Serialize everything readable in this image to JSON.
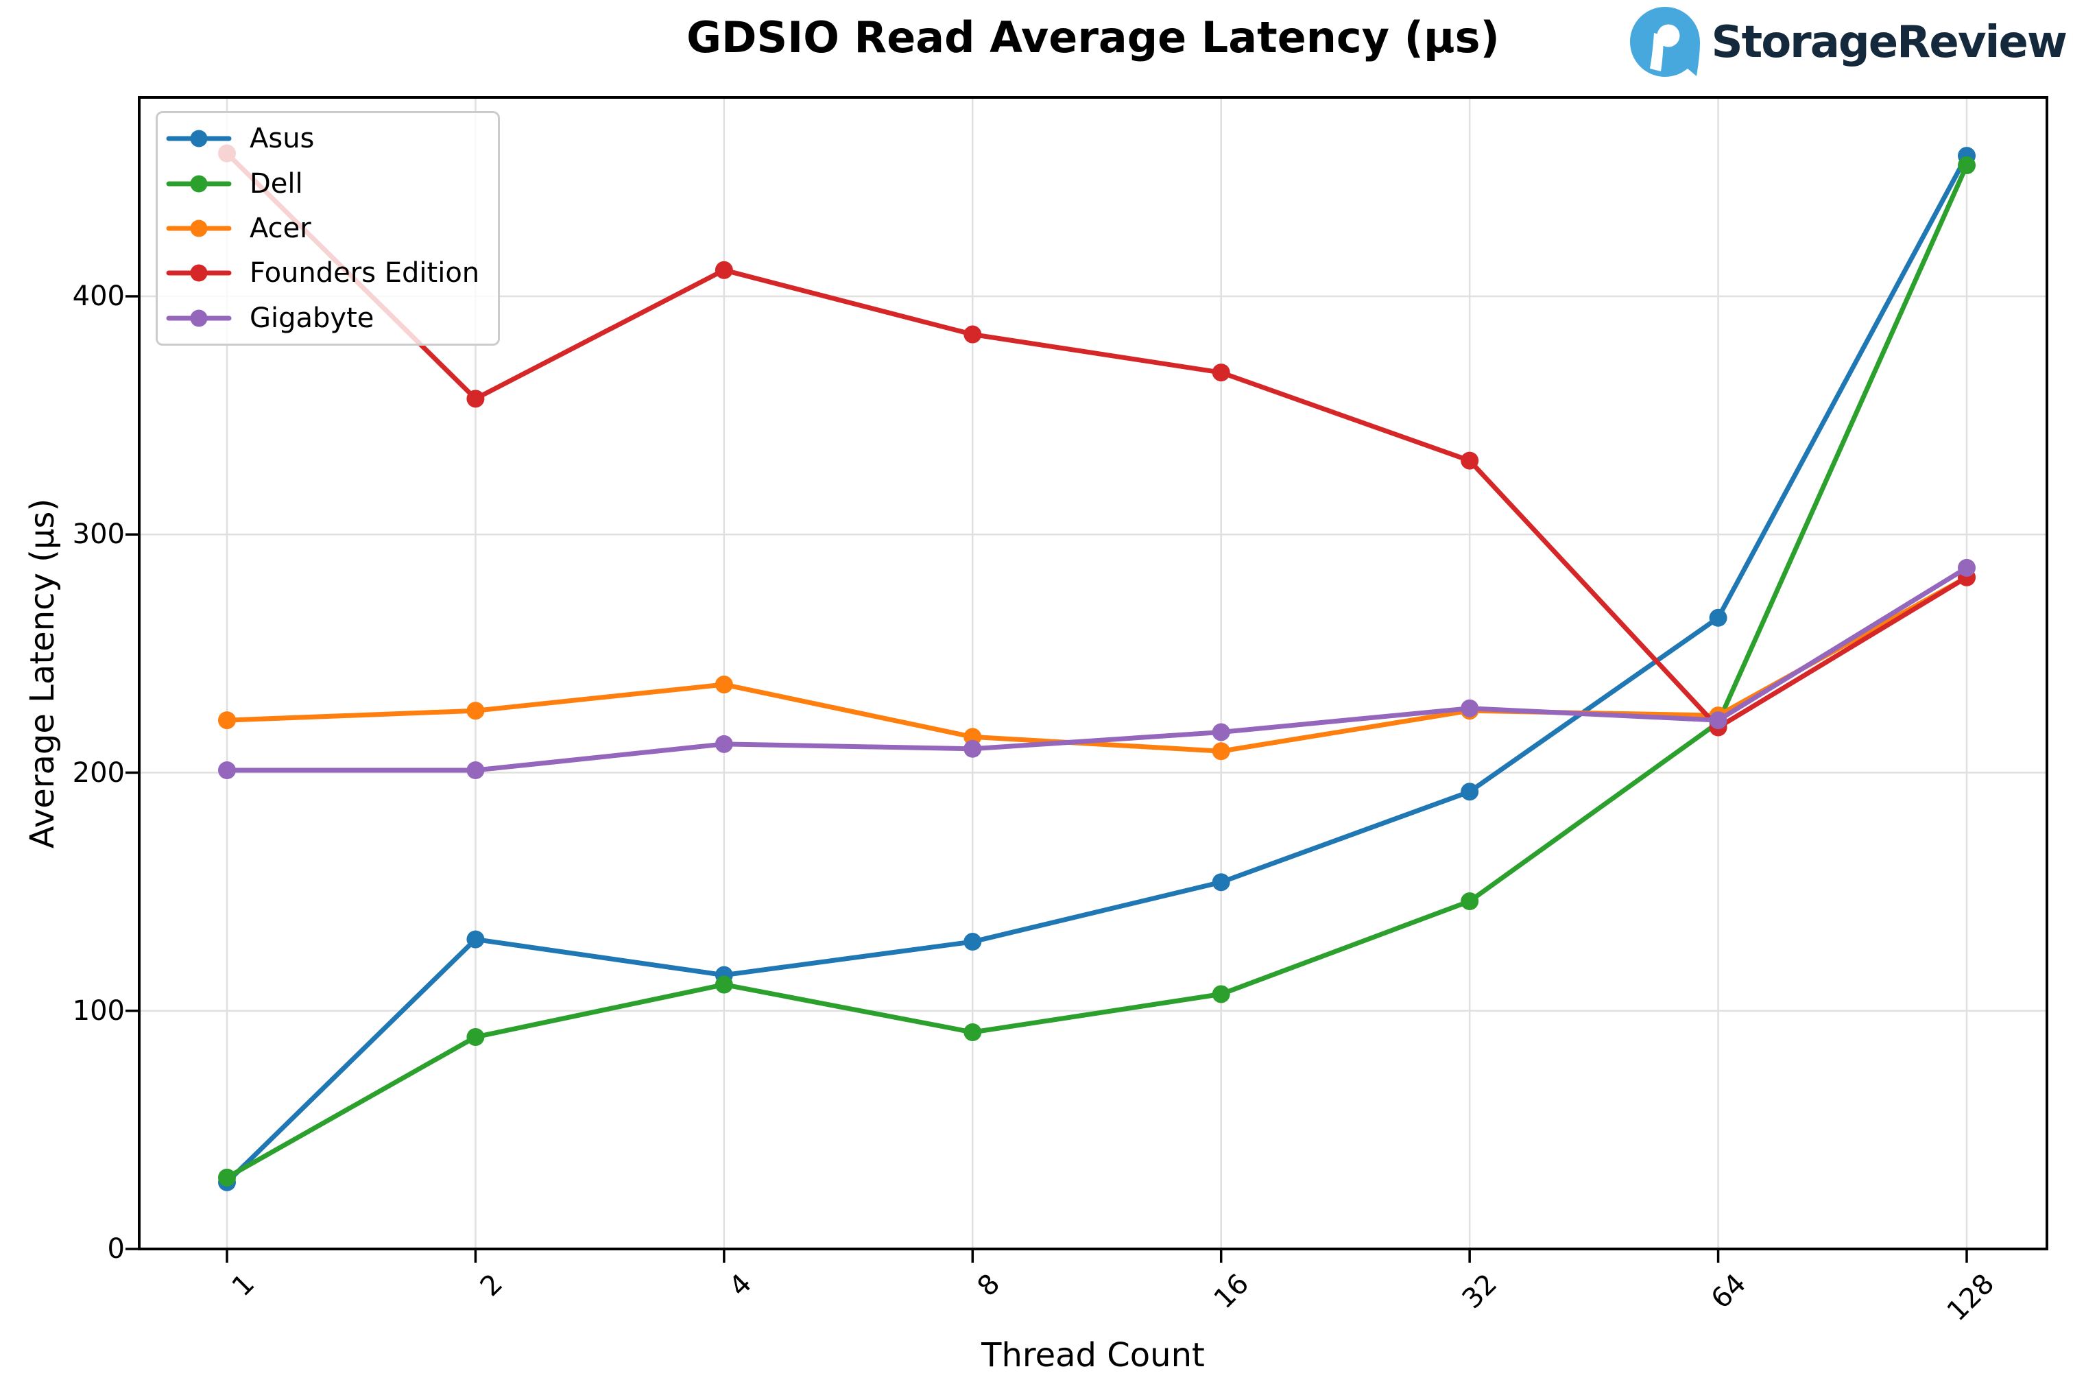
{
  "header": {
    "title": "GDSIO Read Average Latency (μs)"
  },
  "brand": {
    "name": "StorageReview",
    "icon": "storagereview-logo-icon",
    "icon_color": "#47a8dd",
    "text_color": "#15293d"
  },
  "chart_data": {
    "type": "line",
    "title": "GDSIO Read Average Latency (μs)",
    "xlabel": "Thread Count",
    "ylabel": "Average Latency (μs)",
    "categories": [
      "1",
      "2",
      "4",
      "8",
      "16",
      "32",
      "64",
      "128"
    ],
    "x_scale": "categorical (log2 thread counts, evenly spaced)",
    "ylim": [
      0,
      483
    ],
    "yticks": [
      0,
      100,
      200,
      300,
      400
    ],
    "grid": true,
    "gridline_color": "#e0e0e0",
    "legend_position": "upper-left",
    "xtick_rotation_deg": 45,
    "series": [
      {
        "name": "Asus",
        "color": "#1f77b4",
        "values": [
          28,
          130,
          115,
          129,
          154,
          192,
          265,
          459
        ]
      },
      {
        "name": "Dell",
        "color": "#2ca02c",
        "values": [
          30,
          89,
          111,
          91,
          107,
          146,
          221,
          455
        ]
      },
      {
        "name": "Acer",
        "color": "#ff7f0e",
        "values": [
          222,
          226,
          237,
          215,
          209,
          226,
          224,
          282
        ]
      },
      {
        "name": "Founders Edition",
        "color": "#d62728",
        "values": [
          460,
          357,
          411,
          384,
          368,
          331,
          219,
          282
        ]
      },
      {
        "name": "Gigabyte",
        "color": "#9467bd",
        "values": [
          201,
          201,
          212,
          210,
          217,
          227,
          222,
          286
        ]
      }
    ]
  }
}
